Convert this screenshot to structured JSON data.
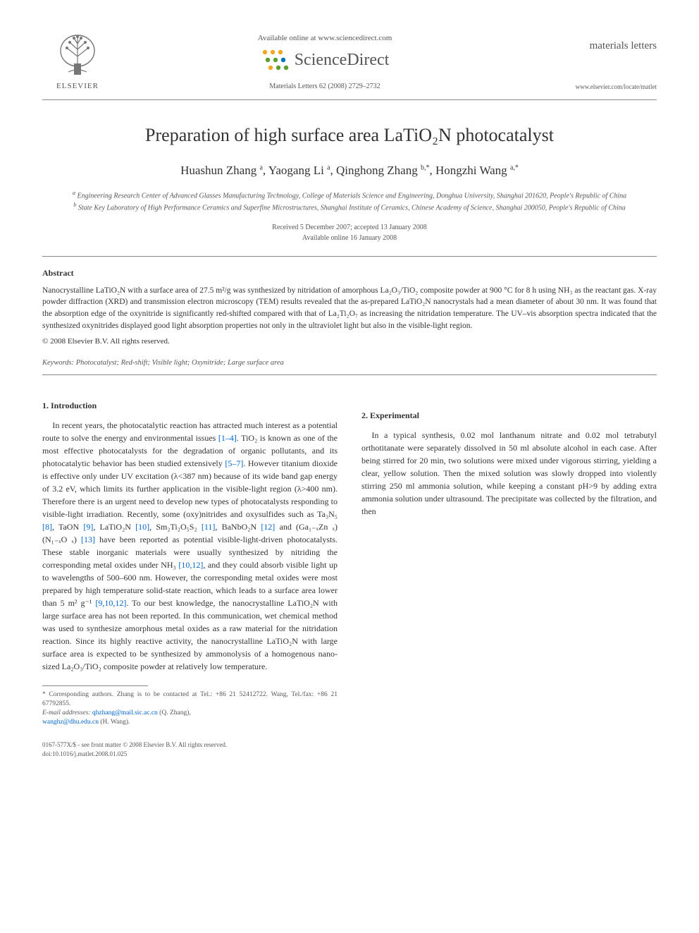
{
  "header": {
    "elsevier_label": "ELSEVIER",
    "available_online": "Available online at www.sciencedirect.com",
    "sciencedirect": "ScienceDirect",
    "journal_ref": "Materials Letters 62 (2008) 2729–2732",
    "journal_title": "materials letters",
    "locate_url": "www.elsevier.com/locate/matlet",
    "sd_dot_colors": [
      "#f5a623",
      "#f5a623",
      "#f5a623",
      "#5aa02c",
      "#5aa02c",
      "#0071bc",
      "#f5a623",
      "#5aa02c",
      "#5aa02c"
    ]
  },
  "title": "Preparation of high surface area LaTiO₂N photocatalyst",
  "authors_html": "Huashun Zhang <sup>a</sup>, Yaogang Li <sup>a</sup>, Qinghong Zhang <sup>b,*</sup>, Hongzhi Wang <sup>a,*</sup>",
  "affiliations": {
    "a": "Engineering Research Center of Advanced Glasses Manufacturing Technology, College of Materials Science and Engineering, Donghua University, Shanghai 201620, People's Republic of China",
    "b": "State Key Laboratory of High Performance Ceramics and Superfine Microstructures, Shanghai Institute of Ceramics, Chinese Academy of Science, Shanghai 200050, People's Republic of China"
  },
  "dates": {
    "received_accepted": "Received 5 December 2007; accepted 13 January 2008",
    "available": "Available online 16 January 2008"
  },
  "abstract": {
    "heading": "Abstract",
    "text": "Nanocrystalline LaTiO₂N with a surface area of 27.5 m²/g was synthesized by nitridation of amorphous La₂O₃/TiO₂ composite powder at 900 °C for 8 h using NH₃ as the reactant gas. X-ray powder diffraction (XRD) and transmission electron microscopy (TEM) results revealed that the as-prepared LaTiO₂N nanocrystals had a mean diameter of about 30 nm. It was found that the absorption edge of the oxynitride is significantly red-shifted compared with that of La₂Ti₂O₇ as increasing the nitridation temperature. The UV–vis absorption spectra indicated that the synthesized oxynitrides displayed good light absorption properties not only in the ultraviolet light but also in the visible-light region.",
    "copyright": "© 2008 Elsevier B.V. All rights reserved."
  },
  "keywords": {
    "label": "Keywords:",
    "list": "Photocatalyst; Red-shift; Visible light; Oxynitride; Large surface area"
  },
  "sections": {
    "intro_head": "1. Introduction",
    "intro_p1_a": "In recent years, the photocatalytic reaction has attracted much interest as a potential route to solve the energy and environmental issues ",
    "intro_ref1": "[1–4]",
    "intro_p1_b": ". TiO₂ is known as one of the most effective photocatalysts for the degradation of organic pollutants, and its photocatalytic behavior has been studied extensively ",
    "intro_ref2": "[5–7]",
    "intro_p1_c": ". However titanium dioxide is effective only under UV excitation (λ<387 nm) because of its wide band gap energy of 3.2 eV, which limits its further application in the visible-light region (λ>400 nm). Therefore there is an urgent need to develop new types of photocatalysts responding to visible-light irradiation. Recently, some (oxy)nitrides and oxysulfides such as Ta₃N₅ ",
    "intro_ref3": "[8]",
    "intro_p1_d": ", TaON ",
    "intro_ref4": "[9]",
    "intro_p1_e": ", LaTiO₂N ",
    "intro_ref5": "[10]",
    "intro_p1_f": ", Sm₂Ti₂O₅S₂ ",
    "intro_ref6": "[11]",
    "intro_p1_g": ", BaNbO₂N ",
    "intro_ref7": "[12]",
    "intro_p1_h": " and (Ga₁₋ₓZn ₓ)(N₁₋ₓO ₓ) ",
    "intro_ref8": "[13]",
    "intro_p1_i": " have been reported as potential visible-light-driven photocatalysts. These stable inorganic materials were usually synthesized by nitriding the corresponding metal oxides under NH₃ ",
    "intro_ref9": "[10,12]",
    "intro_p2_a": ", and they could absorb visible light up to wavelengths of 500–600 nm. However, the corresponding metal oxides were most prepared by high temperature solid-state reaction, which leads to a surface area lower than 5 m² g⁻¹ ",
    "intro_ref10": "[9,10,12]",
    "intro_p2_b": ". To our best knowledge, the nanocrystalline LaTiO₂N with large surface area has not been reported. In this communication, wet chemical method was used to synthesize amorphous metal oxides as a raw material for the nitridation reaction. Since its highly reactive activity, the nanocrystalline LaTiO₂N with large surface area is expected to be synthesized by ammonolysis of a homogenous nano-sized La₂O₃/TiO₂ composite powder at relatively low temperature.",
    "exp_head": "2. Experimental",
    "exp_p1": "In a typical synthesis, 0.02 mol lanthanum nitrate and 0.02 mol tetrabutyl orthotitanate were separately dissolved in 50 ml absolute alcohol in each case. After being stirred for 20 min, two solutions were mixed under vigorous stirring, yielding a clear, yellow solution. Then the mixed solution was slowly dropped into violently stirring 250 ml ammonia solution, while keeping a constant pH>9 by adding extra ammonia solution under ultrasound. The precipitate was collected by the filtration, and then"
  },
  "footnotes": {
    "corresponding": "* Corresponding authors. Zhang is to be contacted at Tel.: +86 21 52412722. Wang, Tel./fax: +86 21 67792855.",
    "email_label": "E-mail addresses:",
    "email1": "qhzhang@mail.sic.ac.cn",
    "email1_who": "(Q. Zhang),",
    "email2": "wanghz@dhu.edu.cn",
    "email2_who": "(H. Wang)."
  },
  "doi_footer": {
    "left": "0167-577X/$ - see front matter © 2008 Elsevier B.V. All rights reserved.",
    "doi": "doi:10.1016/j.matlet.2008.01.025"
  },
  "colors": {
    "text": "#333333",
    "muted": "#555555",
    "link": "#0066cc",
    "rule": "#888888"
  },
  "typography": {
    "title_pt": 26,
    "authors_pt": 17,
    "body_pt": 12,
    "abstract_pt": 11.5,
    "footnote_pt": 9.5
  }
}
